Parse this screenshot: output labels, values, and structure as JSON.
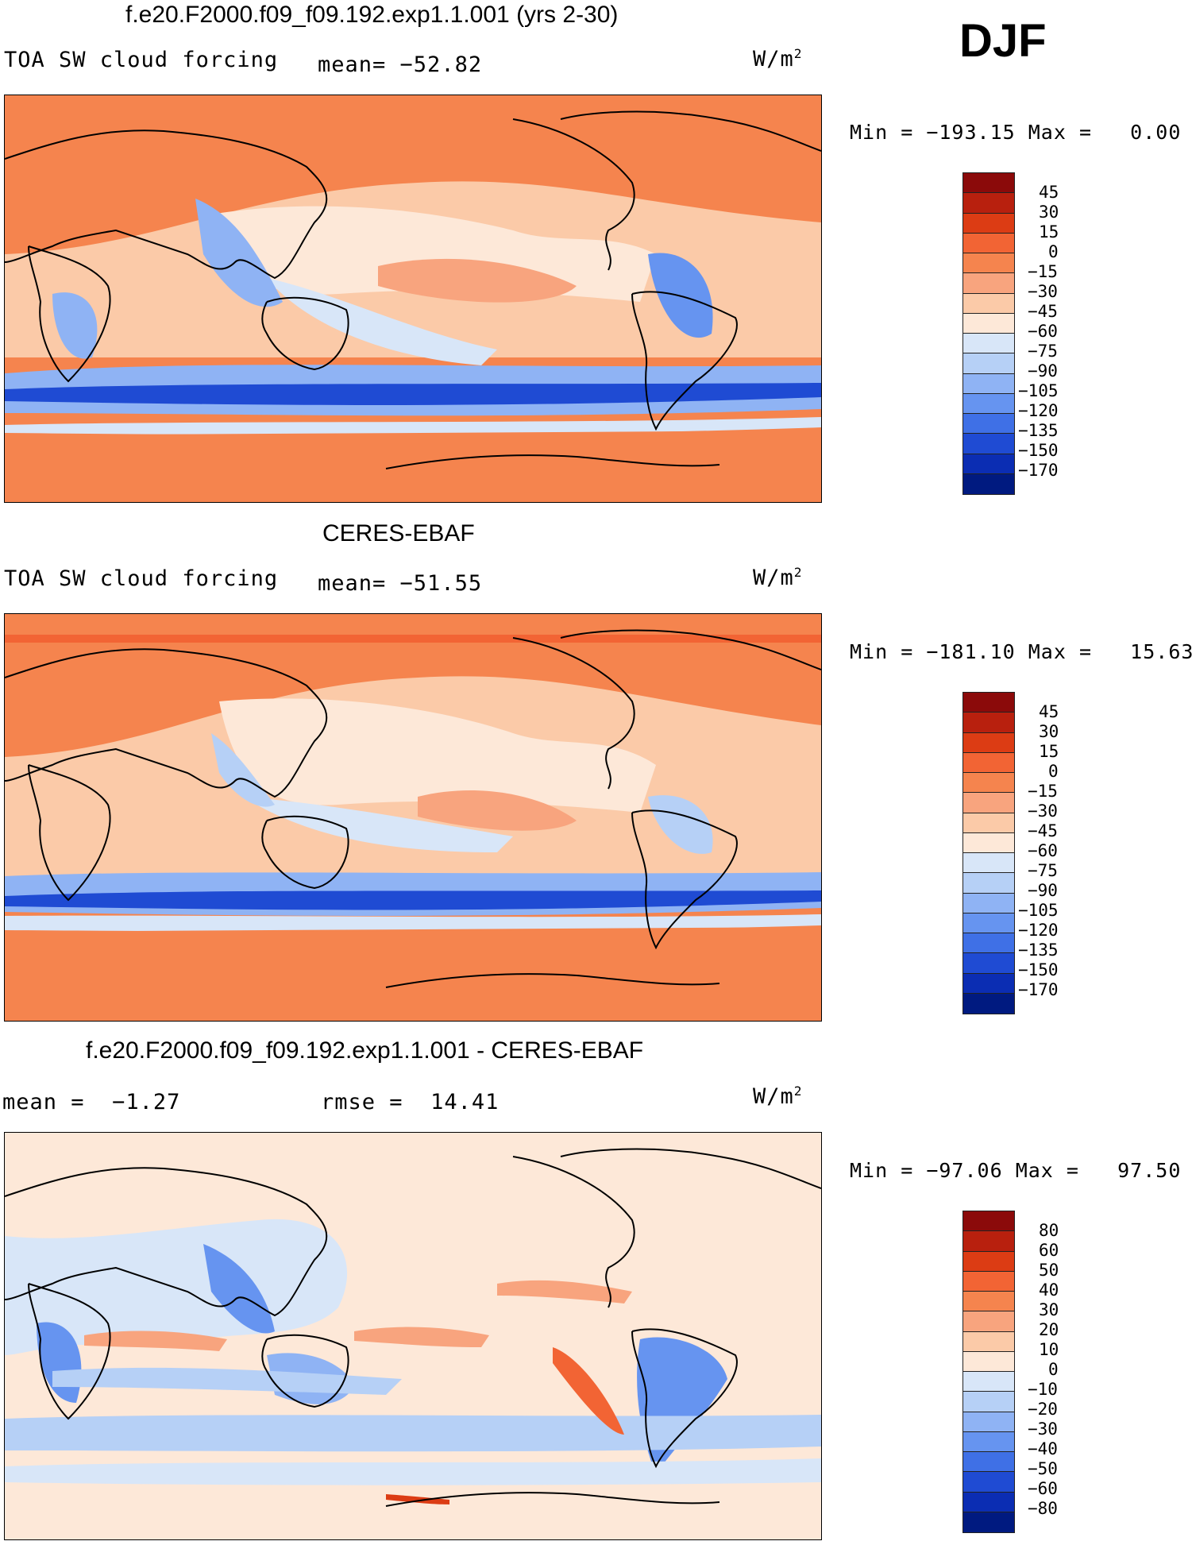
{
  "season": "DJF",
  "panels": [
    {
      "title": "f.e20.F2000.f09_f09.192.exp1.1.001 (yrs 2-30)",
      "variable": "TOA SW cloud forcing",
      "mean_label": "mean=",
      "mean_value": "-52.82",
      "units": "W/m",
      "units_exp": "2",
      "min_label": "Min =",
      "min_value": "-193.15",
      "max_label": "Max =",
      "max_value": "0.00",
      "colorbar": {
        "labels": [
          "45",
          "30",
          "15",
          "0",
          "-15",
          "-30",
          "-45",
          "-60",
          "-75",
          "-90",
          "-105",
          "-120",
          "-135",
          "-150",
          "-170"
        ],
        "colors": [
          "#8b0a0a",
          "#b8200e",
          "#dc3c14",
          "#f26434",
          "#f5844e",
          "#f8a47e",
          "#fbcaa8",
          "#fde8d8",
          "#d8e6f8",
          "#b6d0f6",
          "#8fb3f4",
          "#6694f0",
          "#3f70e6",
          "#1f4bd3",
          "#0b2db3",
          "#001a80"
        ]
      },
      "map": {
        "description_key": "model"
      }
    },
    {
      "title": "CERES-EBAF",
      "variable": "TOA SW cloud forcing",
      "mean_label": "mean=",
      "mean_value": "-51.55",
      "units": "W/m",
      "units_exp": "2",
      "min_label": "Min =",
      "min_value": "-181.10",
      "max_label": "Max =",
      "max_value": "15.63",
      "colorbar": {
        "labels": [
          "45",
          "30",
          "15",
          "0",
          "-15",
          "-30",
          "-45",
          "-60",
          "-75",
          "-90",
          "-105",
          "-120",
          "-135",
          "-150",
          "-170"
        ],
        "colors": [
          "#8b0a0a",
          "#b8200e",
          "#dc3c14",
          "#f26434",
          "#f5844e",
          "#f8a47e",
          "#fbcaa8",
          "#fde8d8",
          "#d8e6f8",
          "#b6d0f6",
          "#8fb3f4",
          "#6694f0",
          "#3f70e6",
          "#1f4bd3",
          "#0b2db3",
          "#001a80"
        ]
      },
      "map": {
        "description_key": "obs"
      }
    },
    {
      "title": "f.e20.F2000.f09_f09.192.exp1.1.001 - CERES-EBAF",
      "variable": "",
      "mean_label": "mean =",
      "mean_value": "-1.27",
      "rmse_label": "rmse =",
      "rmse_value": "14.41",
      "units": "W/m",
      "units_exp": "2",
      "min_label": "Min =",
      "min_value": "-97.06",
      "max_label": "Max =",
      "max_value": "97.50",
      "colorbar": {
        "labels": [
          "80",
          "60",
          "50",
          "40",
          "30",
          "20",
          "10",
          "0",
          "-10",
          "-20",
          "-30",
          "-40",
          "-50",
          "-60",
          "-80"
        ],
        "colors": [
          "#8b0a0a",
          "#b8200e",
          "#dc3c14",
          "#f26434",
          "#f5844e",
          "#f8a47e",
          "#fbcaa8",
          "#fde8d8",
          "#d8e6f8",
          "#b6d0f6",
          "#8fb3f4",
          "#6694f0",
          "#3f70e6",
          "#1f4bd3",
          "#0b2db3",
          "#001a80"
        ]
      },
      "map": {
        "description_key": "diff"
      }
    }
  ]
}
